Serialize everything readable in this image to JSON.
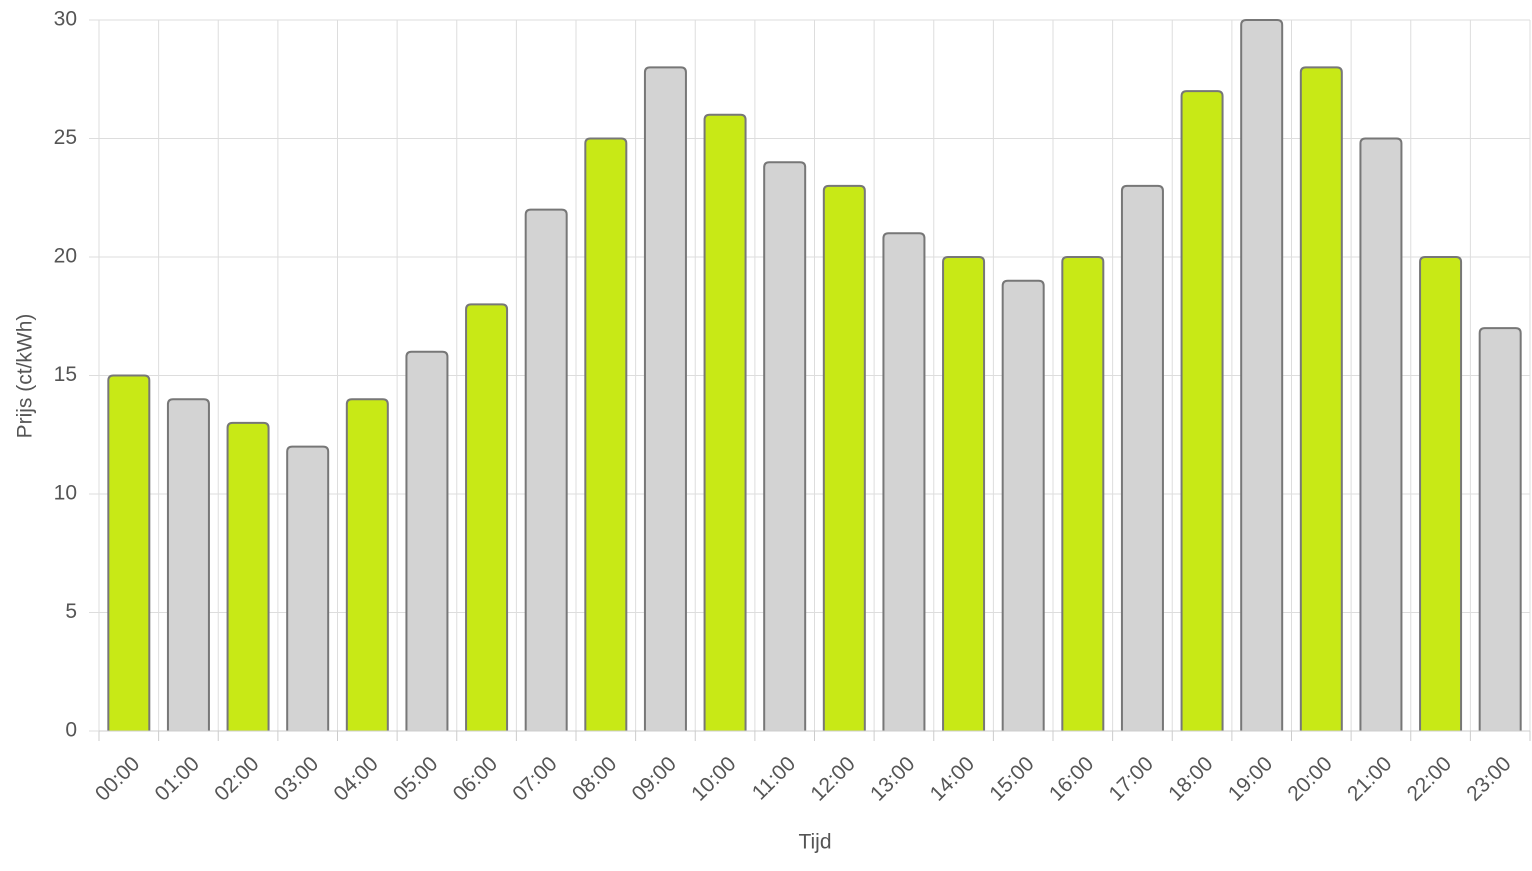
{
  "chart_data": {
    "type": "bar",
    "categories": [
      "00:00",
      "01:00",
      "02:00",
      "03:00",
      "04:00",
      "05:00",
      "06:00",
      "07:00",
      "08:00",
      "09:00",
      "10:00",
      "11:00",
      "12:00",
      "13:00",
      "14:00",
      "15:00",
      "16:00",
      "17:00",
      "18:00",
      "19:00",
      "20:00",
      "21:00",
      "22:00",
      "23:00"
    ],
    "values": [
      15,
      14,
      13,
      12,
      14,
      16,
      18,
      22,
      25,
      28,
      26,
      24,
      23,
      21,
      20,
      19,
      20,
      23,
      27,
      30,
      28,
      25,
      20,
      17
    ],
    "colors": [
      "#c8e916",
      "#d3d3d3",
      "#c8e916",
      "#d3d3d3",
      "#c8e916",
      "#d3d3d3",
      "#c8e916",
      "#d3d3d3",
      "#c8e916",
      "#d3d3d3",
      "#c8e916",
      "#d3d3d3",
      "#c8e916",
      "#d3d3d3",
      "#c8e916",
      "#d3d3d3",
      "#c8e916",
      "#d3d3d3",
      "#c8e916",
      "#d3d3d3",
      "#c8e916",
      "#d3d3d3",
      "#c8e916",
      "#d3d3d3"
    ],
    "y_label": "Prijs (ct/kWh)",
    "x_label": "Tijd",
    "ylim": [
      0,
      30
    ],
    "yticks": [
      0,
      5,
      10,
      15,
      20,
      25,
      30
    ],
    "grid": true
  }
}
